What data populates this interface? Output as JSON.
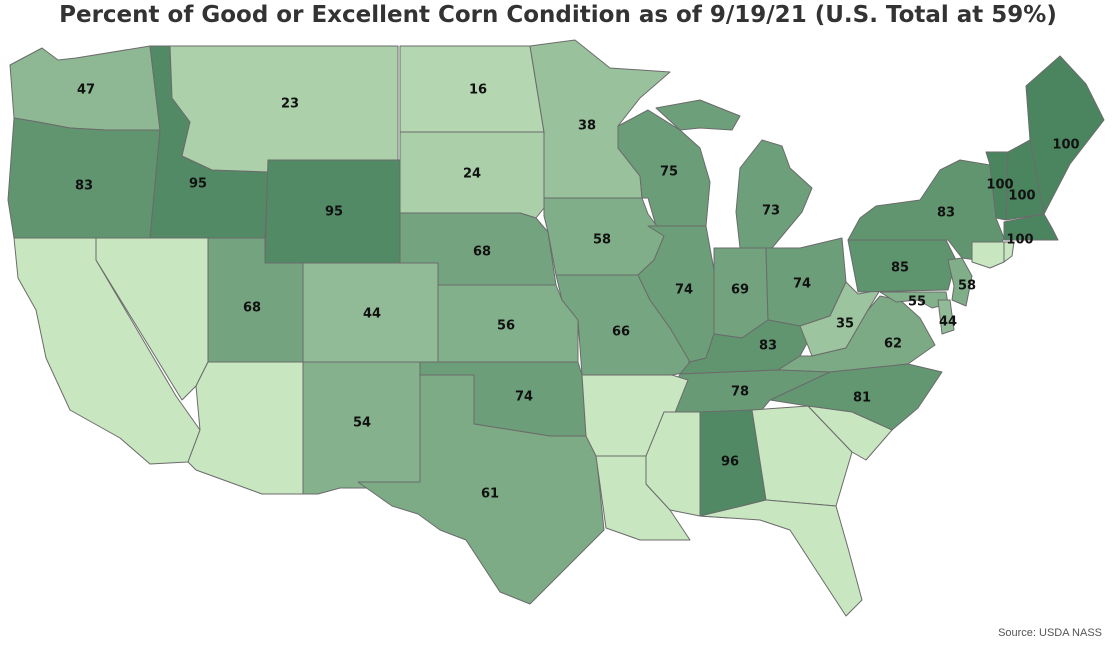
{
  "title": "Percent of Good or Excellent Corn Condition as of 9/19/21 (U.S. Total at 59%)",
  "source": "Source: USDA NASS",
  "map_data": {
    "metric": "percent good or excellent corn condition",
    "us_total": 59,
    "color_scale": {
      "low": "#c8e6c0",
      "high": "#4b8560"
    },
    "states": [
      {
        "state": "WA",
        "value": 47
      },
      {
        "state": "OR",
        "value": 83
      },
      {
        "state": "ID",
        "value": 95
      },
      {
        "state": "MT",
        "value": 23
      },
      {
        "state": "WY",
        "value": 95
      },
      {
        "state": "ND",
        "value": 16
      },
      {
        "state": "SD",
        "value": 24
      },
      {
        "state": "MN",
        "value": 38
      },
      {
        "state": "WI",
        "value": 75
      },
      {
        "state": "MI",
        "value": 73
      },
      {
        "state": "NE",
        "value": 68
      },
      {
        "state": "IA",
        "value": 58
      },
      {
        "state": "UT",
        "value": 68
      },
      {
        "state": "CO",
        "value": 44
      },
      {
        "state": "KS",
        "value": 56
      },
      {
        "state": "MO",
        "value": 66
      },
      {
        "state": "IL",
        "value": 74
      },
      {
        "state": "IN",
        "value": 69
      },
      {
        "state": "OH",
        "value": 74
      },
      {
        "state": "KY",
        "value": 83
      },
      {
        "state": "WV",
        "value": 35
      },
      {
        "state": "VA",
        "value": 62
      },
      {
        "state": "PA",
        "value": 85
      },
      {
        "state": "NY",
        "value": 83
      },
      {
        "state": "VT",
        "value": 100
      },
      {
        "state": "ME",
        "value": 100
      },
      {
        "state": "NH",
        "value": 100
      },
      {
        "state": "MA",
        "value": 100
      },
      {
        "state": "NJ",
        "value": 58
      },
      {
        "state": "MD",
        "value": 55
      },
      {
        "state": "DE",
        "value": 44
      },
      {
        "state": "NC",
        "value": 81
      },
      {
        "state": "TN",
        "value": 78
      },
      {
        "state": "OK",
        "value": 74
      },
      {
        "state": "NM",
        "value": 54
      },
      {
        "state": "TX",
        "value": 61
      },
      {
        "state": "AL",
        "value": 96
      },
      {
        "state": "CA",
        "value": null
      },
      {
        "state": "NV",
        "value": null
      },
      {
        "state": "AZ",
        "value": null
      },
      {
        "state": "AR",
        "value": null
      },
      {
        "state": "LA",
        "value": null
      },
      {
        "state": "MS",
        "value": null
      },
      {
        "state": "GA",
        "value": null
      },
      {
        "state": "SC",
        "value": null
      },
      {
        "state": "FL",
        "value": null
      },
      {
        "state": "CT",
        "value": null
      },
      {
        "state": "RI",
        "value": null
      }
    ]
  }
}
